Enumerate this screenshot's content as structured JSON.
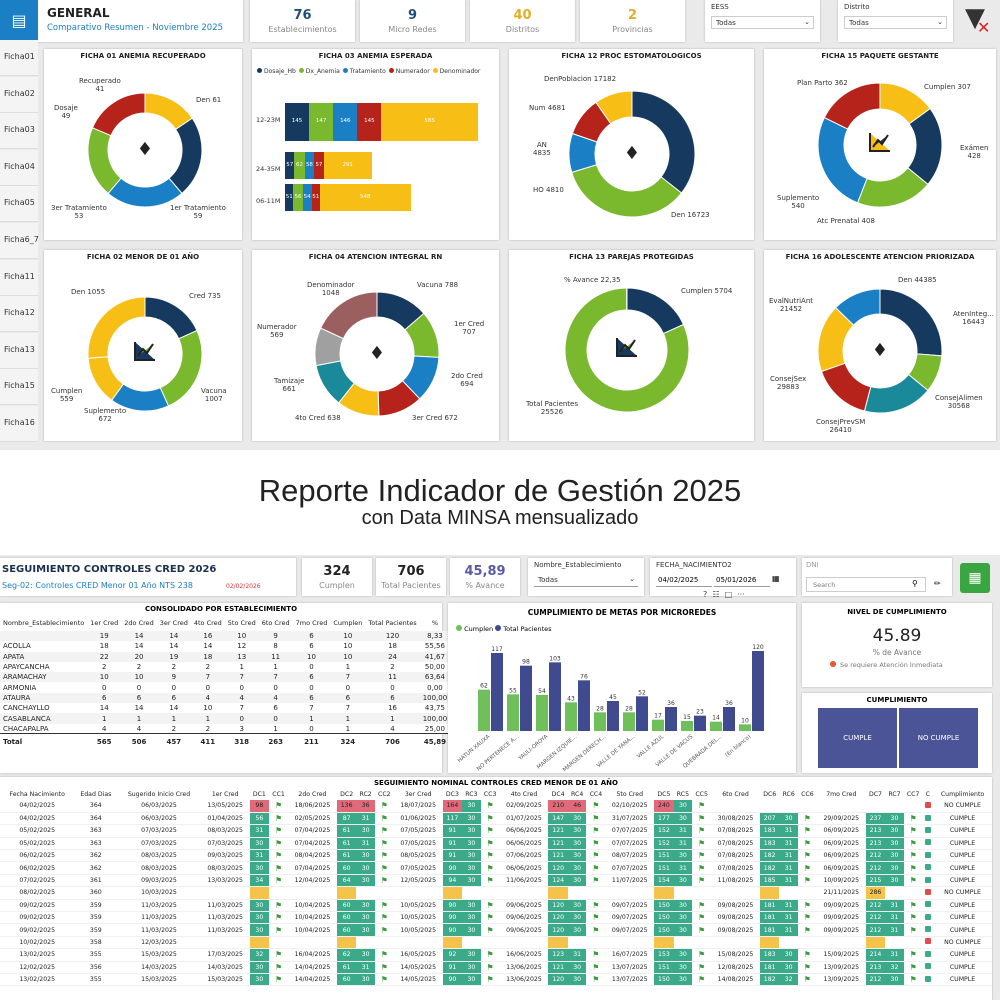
{
  "header": {
    "title": "GENERAL",
    "subtitle": "Comparativo Resumen - Noviembre 2025"
  },
  "kpis": [
    {
      "value": "76",
      "label": "Establecimientos",
      "color": "#1f4e79"
    },
    {
      "value": "9",
      "label": "Micro Redes",
      "color": "#1f4e79"
    },
    {
      "value": "40",
      "label": "Distritos",
      "color": "#e0b020"
    },
    {
      "value": "2",
      "label": "Provincias",
      "color": "#e0b020"
    }
  ],
  "slicers": [
    {
      "label": "EESS",
      "value": "Todas"
    },
    {
      "label": "Distrito",
      "value": "Todas"
    }
  ],
  "tabs": [
    "Ficha01",
    "Ficha02",
    "Ficha03",
    "Ficha04",
    "Ficha05",
    "Ficha6_7",
    "Ficha11",
    "Ficha12",
    "Ficha13",
    "Ficha15",
    "Ficha16"
  ],
  "panels": {
    "p1": {
      "title": "FICHA 01 ANEMIA RECUPERADO",
      "labels": [
        "Recuperado\n41",
        "Den 61",
        "Dosaje\n49",
        "3er Tratamiento\n53",
        "1er Tratamiento\n59"
      ],
      "values": [
        41,
        61,
        59,
        53,
        49
      ],
      "icon": "tag-icon"
    },
    "p2": {
      "title": "FICHA 03 ANEMIA ESPERADA",
      "legend": [
        "Dosaje_Hb",
        "Dx_Anemia",
        "Tratamiento",
        "Numerador",
        "Denominador"
      ],
      "rows": [
        {
          "label": "12-23M",
          "values": [
            145,
            147,
            146,
            145,
            585
          ]
        },
        {
          "label": "24-35M",
          "values": [
            57,
            62,
            58,
            57,
            291
          ]
        },
        {
          "label": "06-11M",
          "values": [
            51,
            56,
            54,
            51,
            548
          ]
        }
      ]
    },
    "p3": {
      "title": "FICHA 12 PROC ESTOMATOLOGICOS",
      "labels": [
        "DenPoblacion 17182",
        "Num 4681",
        "AN\n4835",
        "HO 4810",
        "Den 16723"
      ],
      "values": [
        17182,
        16723,
        4810,
        4835,
        4681
      ],
      "icon": "tag-icon"
    },
    "p4": {
      "title": "FICHA 15 PAQUETE GESTANTE",
      "labels": [
        "Plan Parto 362",
        "Cumplen 307",
        "Exámen\n428",
        "Suplemento\n540",
        "Atc Prenatal 408"
      ],
      "values": [
        307,
        428,
        408,
        540,
        362
      ],
      "icon": "chart-icon"
    },
    "p5": {
      "title": "FICHA 02 MENOR DE 01 AÑO",
      "labels": [
        "Den 1055",
        "Cred 735",
        "Vacuna\n1007",
        "Suplemento\n672",
        "Cumplen\n559"
      ],
      "values": [
        735,
        1007,
        672,
        559,
        1055
      ],
      "icon": "chart-icon"
    },
    "p6": {
      "title": "FICHA 04 ATENCION INTEGRAL RN",
      "labels": [
        "Denominador\n1048",
        "Vacuna 788",
        "1er Cred\n707",
        "Numerador\n569",
        "2do Cred\n694",
        "Tamizaje\n661",
        "4to Cred 638",
        "3er Cred 672"
      ],
      "values": [
        788,
        707,
        694,
        672,
        638,
        661,
        569,
        1048
      ],
      "icon": "tag-icon"
    },
    "p7": {
      "title": "FICHA 13 PAREJAS PROTEGIDAS",
      "labels": [
        "% Avance 22,35",
        "Cumplen 5704",
        "Total Pacientes\n25526"
      ],
      "values": [
        5704,
        25526,
        22
      ],
      "icon": "chart-icon"
    },
    "p8": {
      "title": "FICHA 16 ADOLESCENTE ATENCION PRIORIZADA",
      "labels": [
        "Den 44385",
        "EvalNutriAnt\n21452",
        "AtenInteg...\n16443",
        "ConsejSex\n29883",
        "ConsejAlimen\n30568",
        "ConsejPrevSM\n26410"
      ],
      "values": [
        44385,
        16443,
        30568,
        26410,
        29883,
        21452
      ],
      "icon": "tag-icon"
    }
  },
  "colors": [
    "#163a5f",
    "#7ab82e",
    "#1a7fc4",
    "#b5231a",
    "#f7bf16",
    "#a0a0a0",
    "#9b5f5f",
    "#1a8a9b"
  ],
  "banner": {
    "line1": "Reporte Indicador de Gestión 2025",
    "line2": "con Data MINSA mensualizado"
  },
  "seg": {
    "title": "SEGUIMIENTO CONTROLES CRED 2026",
    "subtitle": "Seg-02: Controles CRED Menor 01 Año NTS 238",
    "date": "02/02/2026"
  },
  "kpis2": [
    {
      "value": "324",
      "label": "Cumplen"
    },
    {
      "value": "706",
      "label": "Total Pacientes"
    },
    {
      "value": "45,89",
      "label": "% Avance"
    }
  ],
  "filters": {
    "establecimiento": {
      "label": "Nombre_Establecimiento",
      "value": "Todas"
    },
    "fecha": {
      "label": "FECHA_NACIMIENTO2",
      "from": "04/02/2025",
      "to": "05/01/2026"
    },
    "dni": {
      "label": "DNI",
      "placeholder": "Search"
    }
  },
  "consolidado": {
    "title": "CONSOLIDADO POR ESTABLECIMIENTO",
    "headers": [
      "Nombre_Establecimiento",
      "1er Cred",
      "2do Cred",
      "3er Cred",
      "4to Cred",
      "5to Cred",
      "6to Cred",
      "7mo Cred",
      "Cumplen",
      "Total Pacientes",
      "%"
    ],
    "rows": [
      [
        "",
        "19",
        "14",
        "14",
        "16",
        "10",
        "9",
        "6",
        "10",
        "120",
        "8,33"
      ],
      [
        "ACOLLA",
        "18",
        "14",
        "14",
        "14",
        "12",
        "8",
        "6",
        "10",
        "18",
        "55,56"
      ],
      [
        "APATA",
        "22",
        "20",
        "19",
        "18",
        "13",
        "11",
        "10",
        "10",
        "24",
        "41,67"
      ],
      [
        "APAYCANCHA",
        "2",
        "2",
        "2",
        "2",
        "1",
        "1",
        "0",
        "1",
        "2",
        "50,00"
      ],
      [
        "ARAMACHAY",
        "10",
        "10",
        "9",
        "7",
        "7",
        "7",
        "6",
        "7",
        "11",
        "63,64"
      ],
      [
        "ARMONIA",
        "0",
        "0",
        "0",
        "0",
        "0",
        "0",
        "0",
        "0",
        "0",
        "0,00"
      ],
      [
        "ATAURA",
        "6",
        "6",
        "6",
        "4",
        "4",
        "4",
        "6",
        "6",
        "6",
        "100,00"
      ],
      [
        "CANCHAYLLO",
        "14",
        "14",
        "14",
        "10",
        "7",
        "6",
        "7",
        "7",
        "16",
        "43,75"
      ],
      [
        "CASABLANCA",
        "1",
        "1",
        "1",
        "1",
        "0",
        "0",
        "1",
        "1",
        "1",
        "100,00"
      ],
      [
        "CHACAPALPA",
        "4",
        "4",
        "2",
        "2",
        "3",
        "1",
        "0",
        "1",
        "4",
        "25,00"
      ]
    ],
    "total": [
      "Total",
      "565",
      "506",
      "457",
      "411",
      "318",
      "263",
      "211",
      "324",
      "706",
      "45,89"
    ]
  },
  "cumplimiento_metas": {
    "title": "CUMPLIMIENTO DE METAS POR MICROREDES",
    "legend": [
      "Cumplen",
      "Total Pacientes"
    ]
  },
  "chart_data": {
    "type": "bar",
    "title": "CUMPLIMIENTO DE METAS POR MICROREDES",
    "categories": [
      "HATUN XAUXA",
      "NO PERTENECE A...",
      "YAULI-OROYA",
      "MARGEN IZQUIE...",
      "MARGEN DERECH...",
      "VALLE DE YANA...",
      "VALLE AZUL",
      "VALLE DE VACUS",
      "QUEBRADA DEL...",
      "(En blanco)"
    ],
    "series": [
      {
        "name": "Cumplen",
        "values": [
          62,
          55,
          54,
          43,
          28,
          28,
          17,
          15,
          14,
          10
        ],
        "color": "#6fbf5a"
      },
      {
        "name": "Total Pacientes",
        "values": [
          117,
          98,
          103,
          76,
          45,
          52,
          36,
          23,
          36,
          120
        ],
        "color": "#3f4a8f"
      }
    ]
  },
  "nivel": {
    "title": "NIVEL DE CUMPLIMIENTO",
    "value": "45.89",
    "label": "% de Avance",
    "note": "Se requiere Atención Inmediata"
  },
  "cumpl": {
    "title": "CUMPLIMIENTO",
    "cumple": "CUMPLE",
    "nocumple": "NO CUMPLE"
  },
  "nominal": {
    "title": "SEGUIMIENTO NOMINAL CONTROLES CRED MENOR DE 01 AÑO",
    "headers": [
      "Fecha Nacimiento",
      "Edad Dias",
      "Sugerido Inicio Cred",
      "1er Cred",
      "DC1",
      "CC1",
      "2do Cred",
      "DC2",
      "RC2",
      "CC2",
      "3er Cred",
      "DC3",
      "RC3",
      "CC3",
      "4to Cred",
      "DC4",
      "RC4",
      "CC4",
      "5to Cred",
      "DC5",
      "RC5",
      "CC5",
      "6to Cred",
      "DC6",
      "RC6",
      "CC6",
      "7mo Cred",
      "DC7",
      "RC7",
      "CC7",
      "C",
      "Cumplimiento"
    ],
    "rows": [
      [
        "04/02/2025",
        "364",
        "06/03/2025",
        "13/05/2025",
        "98:r",
        "f",
        "18/06/2025",
        "136:r",
        "36:r",
        "f",
        "18/07/2025",
        "164:r",
        "30:g",
        "f",
        "02/09/2025",
        "210:r",
        "46:r",
        "f",
        "02/10/2025",
        "240:r",
        "30:g",
        "f",
        "",
        "",
        "",
        "",
        "",
        "",
        "",
        "",
        "r",
        "NO CUMPLE"
      ],
      [
        "04/02/2025",
        "364",
        "06/03/2025",
        "01/04/2025",
        "56:g",
        "f",
        "02/05/2025",
        "87:g",
        "31:g",
        "f",
        "01/06/2025",
        "117:g",
        "30:g",
        "f",
        "01/07/2025",
        "147:g",
        "30:g",
        "f",
        "31/07/2025",
        "177:g",
        "30:g",
        "f",
        "30/08/2025",
        "207:g",
        "30:g",
        "f",
        "29/09/2025",
        "237:g",
        "30:g",
        "f",
        "g",
        "CUMPLE"
      ],
      [
        "05/02/2025",
        "363",
        "07/03/2025",
        "08/03/2025",
        "31:g",
        "f",
        "07/04/2025",
        "61:g",
        "30:g",
        "f",
        "07/05/2025",
        "91:g",
        "30:g",
        "f",
        "06/06/2025",
        "121:g",
        "30:g",
        "f",
        "07/07/2025",
        "152:g",
        "31:g",
        "f",
        "07/08/2025",
        "183:g",
        "31:g",
        "f",
        "06/09/2025",
        "213:g",
        "30:g",
        "f",
        "g",
        "CUMPLE"
      ],
      [
        "05/02/2025",
        "363",
        "07/03/2025",
        "07/03/2025",
        "30:g",
        "f",
        "07/04/2025",
        "61:g",
        "31:g",
        "f",
        "07/05/2025",
        "91:g",
        "30:g",
        "f",
        "06/06/2025",
        "121:g",
        "30:g",
        "f",
        "07/07/2025",
        "152:g",
        "31:g",
        "f",
        "07/08/2025",
        "183:g",
        "31:g",
        "f",
        "06/09/2025",
        "213:g",
        "30:g",
        "f",
        "g",
        "CUMPLE"
      ],
      [
        "06/02/2025",
        "362",
        "08/03/2025",
        "09/03/2025",
        "31:g",
        "f",
        "08/04/2025",
        "61:g",
        "30:g",
        "f",
        "08/05/2025",
        "91:g",
        "30:g",
        "f",
        "07/06/2025",
        "121:g",
        "30:g",
        "f",
        "08/07/2025",
        "151:g",
        "30:g",
        "f",
        "07/08/2025",
        "182:g",
        "31:g",
        "f",
        "06/09/2025",
        "212:g",
        "30:g",
        "f",
        "g",
        "CUMPLE"
      ],
      [
        "06/02/2025",
        "362",
        "08/03/2025",
        "08/03/2025",
        "30:g",
        "f",
        "07/04/2025",
        "60:g",
        "30:g",
        "f",
        "07/05/2025",
        "90:g",
        "30:g",
        "f",
        "06/06/2025",
        "120:g",
        "30:g",
        "f",
        "07/07/2025",
        "151:g",
        "31:g",
        "f",
        "07/08/2025",
        "182:g",
        "31:g",
        "f",
        "06/09/2025",
        "212:g",
        "30:g",
        "f",
        "g",
        "CUMPLE"
      ],
      [
        "07/02/2025",
        "361",
        "09/03/2025",
        "13/03/2025",
        "34:g",
        "f",
        "12/04/2025",
        "64:g",
        "30:g",
        "f",
        "12/05/2025",
        "94:g",
        "30:g",
        "f",
        "11/06/2025",
        "124:g",
        "30:g",
        "f",
        "11/07/2025",
        "154:g",
        "30:g",
        "f",
        "11/08/2025",
        "185:g",
        "31:g",
        "f",
        "10/09/2025",
        "215:g",
        "30:g",
        "f",
        "g",
        "CUMPLE"
      ],
      [
        "08/02/2025",
        "360",
        "10/03/2025",
        "",
        ":y",
        "",
        "",
        ":y",
        "",
        "",
        "",
        ":y",
        "",
        "",
        "",
        ":y",
        "",
        "",
        "",
        ":y",
        "",
        "",
        "",
        ":y",
        "",
        "",
        "21/11/2025",
        "286:y",
        "",
        "",
        "r",
        "NO CUMPLE"
      ],
      [
        "09/02/2025",
        "359",
        "11/03/2025",
        "11/03/2025",
        "30:g",
        "f",
        "10/04/2025",
        "60:g",
        "30:g",
        "f",
        "10/05/2025",
        "90:g",
        "30:g",
        "f",
        "09/06/2025",
        "120:g",
        "30:g",
        "f",
        "09/07/2025",
        "150:g",
        "30:g",
        "f",
        "09/08/2025",
        "181:g",
        "31:g",
        "f",
        "09/09/2025",
        "212:g",
        "31:g",
        "f",
        "g",
        "CUMPLE"
      ],
      [
        "09/02/2025",
        "359",
        "11/03/2025",
        "11/03/2025",
        "30:g",
        "f",
        "10/04/2025",
        "60:g",
        "30:g",
        "f",
        "10/05/2025",
        "90:g",
        "30:g",
        "f",
        "09/06/2025",
        "120:g",
        "30:g",
        "f",
        "09/07/2025",
        "150:g",
        "30:g",
        "f",
        "09/08/2025",
        "181:g",
        "31:g",
        "f",
        "09/09/2025",
        "212:g",
        "31:g",
        "f",
        "g",
        "CUMPLE"
      ],
      [
        "09/02/2025",
        "359",
        "11/03/2025",
        "11/03/2025",
        "30:g",
        "f",
        "10/04/2025",
        "60:g",
        "30:g",
        "f",
        "10/05/2025",
        "90:g",
        "30:g",
        "f",
        "09/06/2025",
        "120:g",
        "30:g",
        "f",
        "09/07/2025",
        "150:g",
        "30:g",
        "f",
        "09/08/2025",
        "181:g",
        "31:g",
        "f",
        "09/09/2025",
        "212:g",
        "31:g",
        "f",
        "g",
        "CUMPLE"
      ],
      [
        "10/02/2025",
        "358",
        "12/03/2025",
        "",
        ":y",
        "",
        "",
        ":y",
        "",
        "",
        "",
        ":y",
        "",
        "",
        "",
        ":y",
        "",
        "",
        "",
        ":y",
        "",
        "",
        "",
        ":y",
        "",
        "",
        "",
        ":y",
        "",
        "",
        "r",
        "NO CUMPLE"
      ],
      [
        "13/02/2025",
        "355",
        "15/03/2025",
        "17/03/2025",
        "32:g",
        "f",
        "16/04/2025",
        "62:g",
        "30:g",
        "f",
        "16/05/2025",
        "92:g",
        "30:g",
        "f",
        "16/06/2025",
        "123:g",
        "31:g",
        "f",
        "16/07/2025",
        "153:g",
        "30:g",
        "f",
        "15/08/2025",
        "183:g",
        "30:g",
        "f",
        "15/09/2025",
        "214:g",
        "31:g",
        "f",
        "g",
        "CUMPLE"
      ],
      [
        "12/02/2025",
        "356",
        "14/03/2025",
        "14/03/2025",
        "30:g",
        "f",
        "14/04/2025",
        "61:g",
        "31:g",
        "f",
        "14/05/2025",
        "91:g",
        "30:g",
        "f",
        "13/06/2025",
        "121:g",
        "30:g",
        "f",
        "13/07/2025",
        "151:g",
        "30:g",
        "f",
        "12/08/2025",
        "181:g",
        "30:g",
        "f",
        "13/09/2025",
        "213:g",
        "32:g",
        "f",
        "g",
        "CUMPLE"
      ],
      [
        "13/02/2025",
        "355",
        "15/03/2025",
        "15/03/2025",
        "30:g",
        "f",
        "14/04/2025",
        "60:g",
        "30:g",
        "f",
        "14/05/2025",
        "90:g",
        "30:g",
        "f",
        "13/06/2025",
        "120:g",
        "30:g",
        "f",
        "13/07/2025",
        "150:g",
        "30:g",
        "f",
        "14/08/2025",
        "182:g",
        "32:g",
        "f",
        "13/09/2025",
        "212:g",
        "30:g",
        "f",
        "g",
        "CUMPLE"
      ]
    ]
  }
}
